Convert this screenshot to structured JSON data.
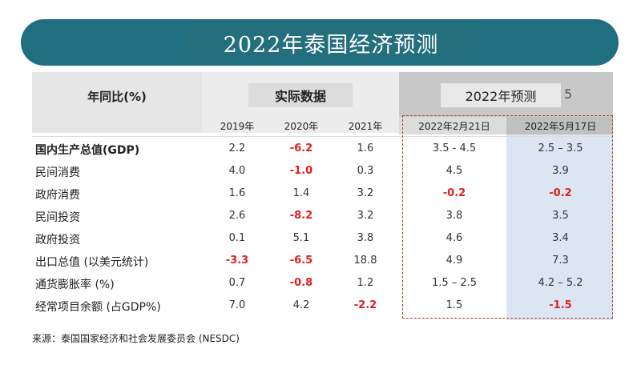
{
  "title": "2022年泰国经济预测",
  "header": {
    "yoy_label": "年同比(%)",
    "actual_label": "实际数据",
    "forecast_label": "2022年预测",
    "forecast_ghost": "5",
    "columns": [
      "2019年",
      "2020年",
      "2021年",
      "2022年2月21日",
      "2022年5月17日"
    ]
  },
  "rows": [
    {
      "name": "国内生产总值(GDP)",
      "values": [
        "2.2",
        "-6.2",
        "1.6",
        "3.5 - 4.5",
        "2.5 – 3.5"
      ],
      "neg": [
        false,
        true,
        false,
        false,
        false
      ]
    },
    {
      "name": "民间消费",
      "values": [
        "4.0",
        "-1.0",
        "0.3",
        "4.5",
        "3.9"
      ],
      "neg": [
        false,
        true,
        false,
        false,
        false
      ]
    },
    {
      "name": "政府消费",
      "values": [
        "1.6",
        "1.4",
        "3.2",
        "-0.2",
        "-0.2"
      ],
      "neg": [
        false,
        false,
        false,
        true,
        true
      ]
    },
    {
      "name": "民间投资",
      "values": [
        "2.6",
        "-8.2",
        "3.2",
        "3.8",
        "3.5"
      ],
      "neg": [
        false,
        true,
        false,
        false,
        false
      ]
    },
    {
      "name": "政府投资",
      "values": [
        "0.1",
        "5.1",
        "3.8",
        "4.6",
        "3.4"
      ],
      "neg": [
        false,
        false,
        false,
        false,
        false
      ]
    },
    {
      "name": "出口总值 (以美元统计)",
      "values": [
        "-3.3",
        "-6.5",
        "18.8",
        "4.9",
        "7.3"
      ],
      "neg": [
        true,
        true,
        false,
        false,
        false
      ]
    },
    {
      "name": "通货膨胀率 (%)",
      "values": [
        "0.7",
        "-0.8",
        "1.2",
        "1.5 – 2.5",
        "4.2 – 5.2"
      ],
      "neg": [
        false,
        true,
        false,
        false,
        false
      ]
    },
    {
      "name": "经常项目余额 (占GDP%)",
      "values": [
        "7.0",
        "4.2",
        "-2.2",
        "1.5",
        "-1.5"
      ],
      "neg": [
        false,
        false,
        true,
        false,
        true
      ]
    }
  ],
  "source": "来源：泰国国家经济和社会发展委员会 (NESDC)"
}
